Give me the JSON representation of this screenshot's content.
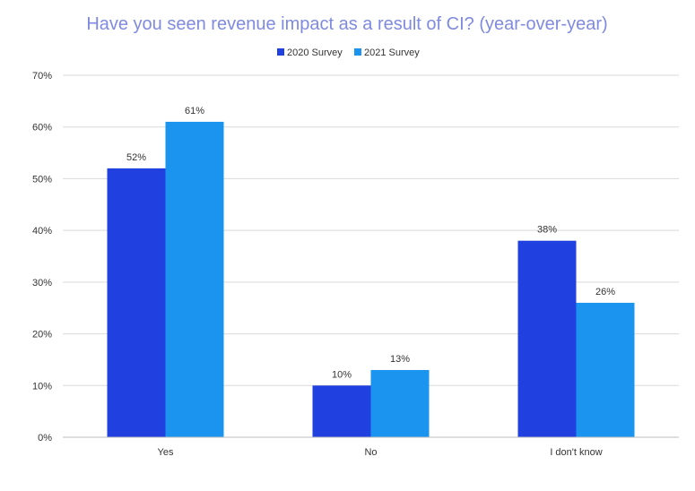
{
  "chart_data": {
    "type": "bar",
    "title": "Have you seen revenue impact as a result of CI? (year-over-year)",
    "categories": [
      "Yes",
      "No",
      "I don't know"
    ],
    "series": [
      {
        "name": "2020 Survey",
        "color": "#2140e0",
        "values": [
          52,
          10,
          38
        ],
        "labels": [
          "52%",
          "10%",
          "38%"
        ]
      },
      {
        "name": "2021 Survey",
        "color": "#1a94ef",
        "values": [
          61,
          13,
          26
        ],
        "labels": [
          "61%",
          "13%",
          "26%"
        ]
      }
    ],
    "ylim": [
      0,
      70
    ],
    "yticks": [
      0,
      10,
      20,
      30,
      40,
      50,
      60,
      70
    ],
    "ytick_labels": [
      "0%",
      "10%",
      "20%",
      "30%",
      "40%",
      "50%",
      "60%",
      "70%"
    ],
    "grid": true,
    "legend_position": "top-center"
  }
}
